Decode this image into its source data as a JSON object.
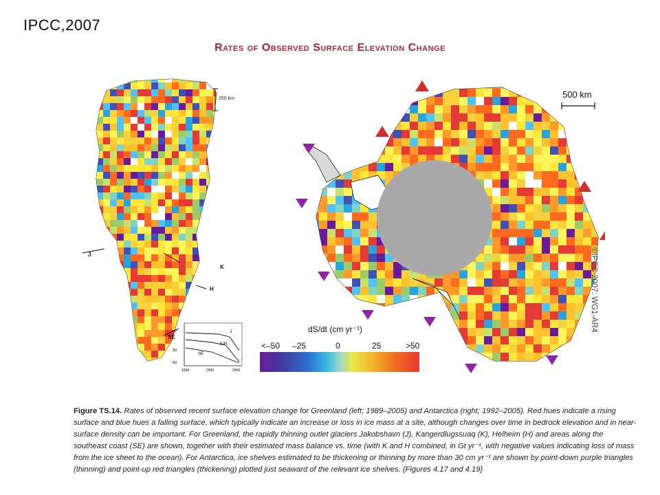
{
  "slide_label": "IPCC,2007",
  "figure_title": "Rates of Observed Surface Elevation Change",
  "greenland": {
    "scale_label": "250 km",
    "glaciers": {
      "j": "J",
      "k": "K",
      "h": "H",
      "se": "SE"
    },
    "inset": {
      "labels": {
        "j": "J",
        "kh": "K/H",
        "se": "SE"
      },
      "y_ticks": [
        "0",
        "-50",
        "-60"
      ],
      "x_ticks": [
        "1996",
        "2000",
        "2005"
      ]
    }
  },
  "antarctica": {
    "scale_label": "500 km"
  },
  "colorbar": {
    "title": "dS/dt (cm yr⁻¹)",
    "ticks": [
      "<–50",
      "–25",
      "0",
      "25",
      ">50"
    ]
  },
  "copyright": "©IPCC 2007: WG1-AR4",
  "caption": {
    "label": "Figure TS.14.",
    "text": " Rates of observed recent surface elevation change for Greenland (left; 1989–2005) and Antarctica (right; 1992–2005). Red hues indicate a rising surface and blue hues a falling surface, which typically indicate an increase or loss in ice mass at a site, although changes over time in bedrock elevation and in near-surface density can be important. For Greenland, the rapidly thinning outlet glaciers Jakobshavn (J), Kangerdlugssuaq (K), Helheim (H) and areas along the southeast coast (SE) are shown, together with their estimated mass balance vs. time (with K and H combined, in Gt yr⁻¹, with negative values indicating loss of mass from the ice sheet to the ocean). For Antarctica, ice shelves estimated to be thickening or thinning by more than 30 cm yr⁻¹ are shown by point-down purple triangles (thinning) and point-up red triangles (thickening) plotted just seaward of the relevant ice shelves. {Figures 4.17 and 4.19}"
  }
}
